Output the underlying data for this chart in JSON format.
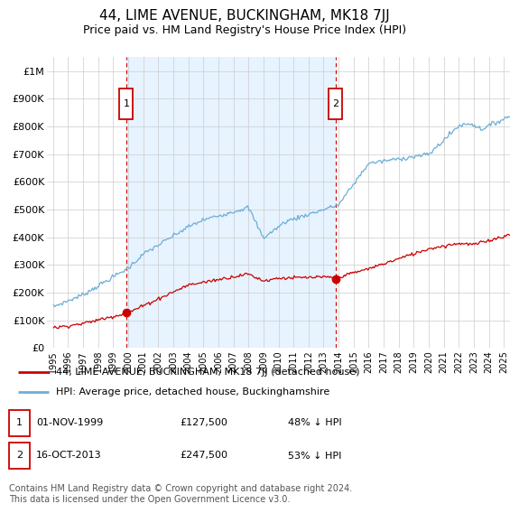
{
  "title": "44, LIME AVENUE, BUCKINGHAM, MK18 7JJ",
  "subtitle": "Price paid vs. HM Land Registry's House Price Index (HPI)",
  "ylim": [
    0,
    1050000
  ],
  "yticks": [
    0,
    100000,
    200000,
    300000,
    400000,
    500000,
    600000,
    700000,
    800000,
    900000,
    1000000
  ],
  "ytick_labels": [
    "£0",
    "£100K",
    "£200K",
    "£300K",
    "£400K",
    "£500K",
    "£600K",
    "£700K",
    "£800K",
    "£900K",
    "£1M"
  ],
  "sale1_date": "01-NOV-1999",
  "sale1_price": 127500,
  "sale1_x": 1999.875,
  "sale1_label": "1",
  "sale1_hpi_pct": "48% ↓ HPI",
  "sale2_date": "16-OCT-2013",
  "sale2_price": 247500,
  "sale2_x": 2013.792,
  "sale2_label": "2",
  "sale2_hpi_pct": "53% ↓ HPI",
  "property_line_color": "#cc0000",
  "hpi_line_color": "#6baed6",
  "shade_color": "#ddeeff",
  "vline_color": "#cc0000",
  "marker_box_color": "#cc0000",
  "legend_property_label": "44, LIME AVENUE, BUCKINGHAM, MK18 7JJ (detached house)",
  "legend_hpi_label": "HPI: Average price, detached house, Buckinghamshire",
  "footer": "Contains HM Land Registry data © Crown copyright and database right 2024.\nThis data is licensed under the Open Government Licence v3.0.",
  "background_color": "#ffffff",
  "grid_color": "#cccccc",
  "title_fontsize": 11,
  "subtitle_fontsize": 9,
  "tick_fontsize": 8,
  "legend_fontsize": 8,
  "table_fontsize": 8,
  "footer_fontsize": 7,
  "xlim_left": 1994.6,
  "xlim_right": 2025.4
}
